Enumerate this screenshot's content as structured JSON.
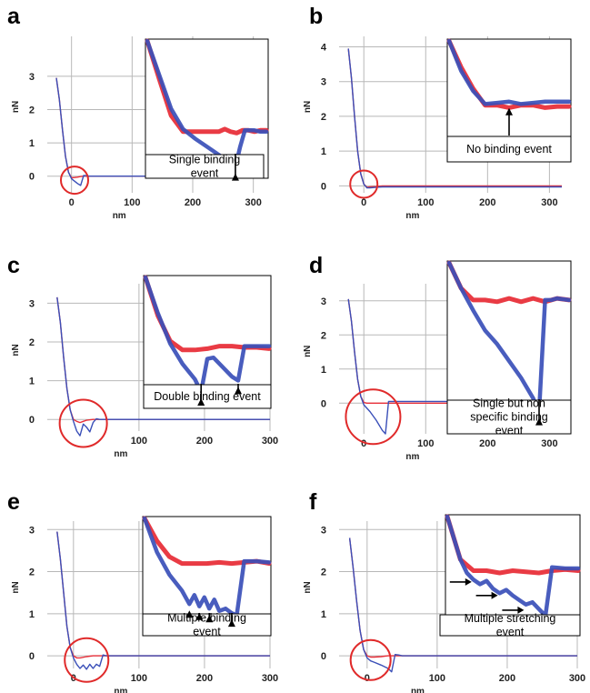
{
  "colors": {
    "approach": "#e8303a",
    "retract": "#3a4fb8",
    "circle": "#e02a2a",
    "grid": "#b8b8b8",
    "arrow": "#000000"
  },
  "chart_data": [
    {
      "type": "line",
      "panel": "a",
      "xlabel": "nm",
      "ylabel": "nN",
      "xlim": [
        -40,
        320
      ],
      "ylim": [
        -0.5,
        4.2
      ],
      "xticks": [
        0,
        100,
        200,
        300
      ],
      "yticks": [
        0,
        1,
        2,
        3
      ],
      "grid": true,
      "series": [
        {
          "x": [
            -25,
            -20,
            -15,
            -10,
            -5,
            0,
            5,
            10,
            15,
            20,
            30,
            50,
            100,
            150,
            200,
            250,
            300,
            320
          ],
          "y": [
            2.95,
            2.3,
            1.4,
            0.6,
            0.12,
            -0.05,
            -0.04,
            -0.03,
            -0.01,
            0,
            0,
            0,
            0,
            0,
            0,
            0,
            0,
            0
          ]
        },
        {
          "x": [
            -25,
            -20,
            -15,
            -10,
            -5,
            0,
            5,
            10,
            15,
            20,
            30,
            50,
            100,
            150,
            200,
            250,
            300,
            320
          ],
          "y": [
            2.95,
            2.3,
            1.4,
            0.6,
            0.12,
            -0.08,
            -0.15,
            -0.22,
            -0.28,
            0.02,
            0,
            0,
            0,
            0,
            0,
            0,
            0,
            0
          ]
        }
      ],
      "circle": {
        "x": 5,
        "y": -0.12
      },
      "inset": {
        "label": "Single binding event",
        "series": [
          {
            "x": [
              0,
              0.1,
              0.2,
              0.3,
              0.4,
              0.5,
              0.55,
              0.6,
              0.65,
              0.7,
              0.75,
              0.8,
              0.85,
              0.9,
              0.95,
              1.0
            ],
            "y": [
              1.0,
              0.72,
              0.45,
              0.33,
              0.33,
              0.33,
              0.33,
              0.33,
              0.35,
              0.33,
              0.32,
              0.34,
              0.34,
              0.33,
              0.34,
              0.34
            ]
          },
          {
            "x": [
              0,
              0.1,
              0.2,
              0.3,
              0.4,
              0.5,
              0.6,
              0.7,
              0.74,
              0.78,
              0.82,
              0.86,
              0.9,
              0.95,
              1.0
            ],
            "y": [
              1.0,
              0.75,
              0.5,
              0.35,
              0.28,
              0.22,
              0.16,
              0.1,
              0.07,
              0.22,
              0.34,
              0.34,
              0.34,
              0.33,
              0.33
            ]
          }
        ],
        "arrows": [
          0.74
        ]
      }
    },
    {
      "type": "line",
      "panel": "b",
      "xlabel": "nm",
      "ylabel": "nN",
      "xlim": [
        -40,
        320
      ],
      "ylim": [
        -0.2,
        4.3
      ],
      "xticks": [
        0,
        100,
        200,
        300
      ],
      "yticks": [
        0,
        1,
        2,
        3,
        4
      ],
      "grid": true,
      "series": [
        {
          "x": [
            -25,
            -20,
            -15,
            -10,
            -5,
            0,
            5,
            10,
            20,
            30,
            50,
            100,
            150,
            200,
            250,
            300,
            320
          ],
          "y": [
            3.95,
            3.1,
            2.0,
            1.0,
            0.35,
            0.05,
            -0.04,
            -0.03,
            -0.02,
            0,
            0,
            0,
            0,
            0,
            0,
            0,
            0
          ]
        },
        {
          "x": [
            -25,
            -20,
            -15,
            -10,
            -5,
            0,
            5,
            10,
            20,
            30,
            50,
            100,
            150,
            200,
            250,
            300,
            320
          ],
          "y": [
            3.95,
            3.1,
            2.0,
            1.0,
            0.35,
            0.05,
            -0.06,
            -0.06,
            -0.04,
            -0.03,
            -0.03,
            -0.03,
            -0.03,
            -0.03,
            -0.03,
            -0.03,
            -0.03
          ]
        }
      ],
      "circle": {
        "x": 0,
        "y": 0.05
      },
      "inset": {
        "label": "No binding event",
        "series": [
          {
            "x": [
              0,
              0.1,
              0.2,
              0.3,
              0.4,
              0.5,
              0.6,
              0.7,
              0.8,
              0.9,
              1.0
            ],
            "y": [
              1.0,
              0.78,
              0.6,
              0.46,
              0.46,
              0.44,
              0.46,
              0.46,
              0.44,
              0.45,
              0.45
            ]
          },
          {
            "x": [
              0,
              0.1,
              0.2,
              0.3,
              0.4,
              0.5,
              0.6,
              0.7,
              0.8,
              0.9,
              1.0
            ],
            "y": [
              1.0,
              0.75,
              0.58,
              0.47,
              0.48,
              0.49,
              0.47,
              0.48,
              0.49,
              0.49,
              0.49
            ]
          }
        ],
        "arrows": [
          0.5
        ]
      }
    },
    {
      "type": "line",
      "panel": "c",
      "xlabel": "nm",
      "ylabel": "nN",
      "xlim": [
        -40,
        300
      ],
      "ylim": [
        -0.3,
        3.5
      ],
      "xticks": [
        100,
        200,
        300
      ],
      "yticks": [
        0,
        1,
        2,
        3
      ],
      "grid": true,
      "series": [
        {
          "x": [
            -25,
            -20,
            -15,
            -10,
            -5,
            0,
            5,
            10,
            15,
            20,
            30,
            50,
            100,
            150,
            200,
            250,
            300
          ],
          "y": [
            3.15,
            2.5,
            1.6,
            0.8,
            0.25,
            0.0,
            -0.05,
            -0.08,
            -0.05,
            -0.02,
            0,
            0,
            0,
            0,
            0,
            0,
            0
          ]
        },
        {
          "x": [
            -25,
            -20,
            -15,
            -10,
            -5,
            0,
            5,
            10,
            15,
            20,
            25,
            30,
            35,
            40,
            50,
            100,
            150,
            200,
            250,
            300
          ],
          "y": [
            3.15,
            2.5,
            1.6,
            0.8,
            0.25,
            -0.05,
            -0.3,
            -0.42,
            -0.12,
            -0.2,
            -0.32,
            -0.08,
            0.02,
            0,
            0,
            0,
            0,
            0,
            0,
            0
          ]
        }
      ],
      "circle": {
        "x": 15,
        "y": -0.1
      },
      "inset": {
        "label": "Double binding event",
        "series": [
          {
            "x": [
              0,
              0.1,
              0.2,
              0.3,
              0.4,
              0.5,
              0.6,
              0.7,
              0.8,
              0.9,
              1.0
            ],
            "y": [
              1.0,
              0.7,
              0.5,
              0.43,
              0.43,
              0.44,
              0.46,
              0.46,
              0.45,
              0.45,
              0.44
            ]
          },
          {
            "x": [
              0,
              0.1,
              0.2,
              0.3,
              0.4,
              0.45,
              0.5,
              0.55,
              0.6,
              0.65,
              0.7,
              0.75,
              0.8,
              0.9,
              1.0
            ],
            "y": [
              1.0,
              0.72,
              0.48,
              0.32,
              0.2,
              0.1,
              0.36,
              0.37,
              0.32,
              0.27,
              0.22,
              0.19,
              0.46,
              0.46,
              0.46
            ]
          }
        ],
        "arrows": [
          0.45,
          0.75
        ]
      }
    },
    {
      "type": "line",
      "panel": "d",
      "xlabel": "nm",
      "ylabel": "nN",
      "xlim": [
        -40,
        320
      ],
      "ylim": [
        -0.9,
        3.5
      ],
      "xticks": [
        0,
        100,
        200,
        300
      ],
      "yticks": [
        0,
        1,
        2,
        3
      ],
      "grid": true,
      "series": [
        {
          "x": [
            -25,
            -20,
            -15,
            -10,
            -5,
            0,
            5,
            10,
            20,
            30,
            50,
            100,
            150,
            200,
            250,
            300,
            320
          ],
          "y": [
            3.05,
            2.4,
            1.5,
            0.7,
            0.2,
            0.02,
            0,
            0,
            0,
            0,
            0,
            0,
            0,
            0,
            0,
            0,
            0
          ]
        },
        {
          "x": [
            -25,
            -20,
            -15,
            -10,
            -5,
            0,
            10,
            20,
            30,
            35,
            40,
            45,
            50,
            100,
            150,
            200,
            250,
            300,
            320
          ],
          "y": [
            3.05,
            2.4,
            1.5,
            0.7,
            0.2,
            -0.05,
            -0.25,
            -0.5,
            -0.8,
            -0.9,
            0.05,
            0.05,
            0.05,
            0.05,
            0.05,
            0.05,
            0.05,
            0.05,
            0.05
          ]
        }
      ],
      "circle": {
        "x": 15,
        "y": -0.4
      },
      "inset": {
        "label": "Single but non specific binding event",
        "series": [
          {
            "x": [
              0,
              0.1,
              0.2,
              0.3,
              0.4,
              0.5,
              0.6,
              0.7,
              0.8,
              0.9,
              1.0
            ],
            "y": [
              1.0,
              0.85,
              0.78,
              0.78,
              0.77,
              0.79,
              0.77,
              0.79,
              0.77,
              0.79,
              0.78
            ]
          },
          {
            "x": [
              0,
              0.1,
              0.2,
              0.3,
              0.4,
              0.5,
              0.6,
              0.7,
              0.75,
              0.8,
              0.85,
              0.9,
              1.0
            ],
            "y": [
              1.0,
              0.85,
              0.72,
              0.6,
              0.52,
              0.42,
              0.32,
              0.2,
              0.12,
              0.78,
              0.78,
              0.79,
              0.78
            ]
          }
        ],
        "arrows": [
          0.75
        ]
      }
    },
    {
      "type": "line",
      "panel": "e",
      "xlabel": "nm",
      "ylabel": "nN",
      "xlim": [
        -40,
        300
      ],
      "ylim": [
        -0.3,
        3.2
      ],
      "xticks": [
        0,
        100,
        200,
        300
      ],
      "yticks": [
        0,
        1,
        2,
        3
      ],
      "grid": true,
      "series": [
        {
          "x": [
            -25,
            -20,
            -15,
            -10,
            -5,
            0,
            5,
            10,
            20,
            30,
            50,
            100,
            150,
            200,
            250,
            300
          ],
          "y": [
            2.95,
            2.3,
            1.5,
            0.7,
            0.2,
            0.0,
            -0.05,
            -0.05,
            -0.02,
            0,
            0,
            0,
            0,
            0,
            0,
            0
          ]
        },
        {
          "x": [
            -25,
            -20,
            -15,
            -10,
            -5,
            0,
            5,
            10,
            15,
            20,
            25,
            30,
            35,
            40,
            45,
            50,
            100,
            150,
            200,
            250,
            300
          ],
          "y": [
            2.95,
            2.3,
            1.5,
            0.7,
            0.2,
            -0.05,
            -0.2,
            -0.3,
            -0.22,
            -0.32,
            -0.2,
            -0.3,
            -0.2,
            -0.25,
            0.02,
            0,
            0,
            0,
            0,
            0,
            0
          ]
        }
      ],
      "circle": {
        "x": 20,
        "y": -0.1
      },
      "inset": {
        "label": "Multiple binding event",
        "series": [
          {
            "x": [
              0,
              0.1,
              0.2,
              0.3,
              0.4,
              0.5,
              0.6,
              0.7,
              0.8,
              0.9,
              1.0
            ],
            "y": [
              1.0,
              0.8,
              0.66,
              0.6,
              0.6,
              0.6,
              0.61,
              0.6,
              0.61,
              0.62,
              0.6
            ]
          },
          {
            "x": [
              0,
              0.1,
              0.2,
              0.3,
              0.36,
              0.4,
              0.44,
              0.48,
              0.52,
              0.56,
              0.6,
              0.65,
              0.7,
              0.74,
              0.8,
              0.9,
              1.0
            ],
            "y": [
              1.0,
              0.7,
              0.5,
              0.36,
              0.24,
              0.32,
              0.22,
              0.3,
              0.2,
              0.28,
              0.18,
              0.2,
              0.16,
              0.14,
              0.62,
              0.62,
              0.61
            ]
          }
        ],
        "arrows": [
          0.36,
          0.44,
          0.52,
          0.7
        ]
      }
    },
    {
      "type": "line",
      "panel": "f",
      "xlabel": "nm",
      "ylabel": "nN",
      "xlim": [
        -40,
        300
      ],
      "ylim": [
        -0.3,
        3.2
      ],
      "xticks": [
        0,
        100,
        200,
        300
      ],
      "yticks": [
        0,
        1,
        2,
        3
      ],
      "grid": true,
      "series": [
        {
          "x": [
            -25,
            -20,
            -15,
            -10,
            -5,
            0,
            5,
            10,
            20,
            30,
            50,
            100,
            150,
            200,
            250,
            300
          ],
          "y": [
            2.8,
            2.1,
            1.3,
            0.6,
            0.15,
            0.0,
            -0.03,
            -0.03,
            -0.02,
            0,
            0,
            0,
            0,
            0,
            0,
            0
          ]
        },
        {
          "x": [
            -25,
            -20,
            -15,
            -10,
            -5,
            0,
            5,
            10,
            20,
            30,
            35,
            40,
            45,
            50,
            100,
            150,
            200,
            250,
            300
          ],
          "y": [
            2.8,
            2.1,
            1.3,
            0.6,
            0.15,
            -0.05,
            -0.12,
            -0.15,
            -0.22,
            -0.3,
            -0.38,
            0.03,
            0.02,
            0,
            0,
            0,
            0,
            0,
            0
          ]
        }
      ],
      "circle": {
        "x": 5,
        "y": -0.1
      },
      "inset": {
        "label": "Multiple stretching event",
        "series": [
          {
            "x": [
              0,
              0.1,
              0.2,
              0.3,
              0.4,
              0.5,
              0.6,
              0.7,
              0.8,
              0.9,
              1.0
            ],
            "y": [
              1.0,
              0.62,
              0.52,
              0.52,
              0.5,
              0.52,
              0.51,
              0.5,
              0.52,
              0.53,
              0.52
            ]
          },
          {
            "x": [
              0,
              0.1,
              0.15,
              0.2,
              0.25,
              0.3,
              0.35,
              0.4,
              0.45,
              0.5,
              0.55,
              0.6,
              0.65,
              0.7,
              0.75,
              0.8,
              0.9,
              1.0
            ],
            "y": [
              1.0,
              0.62,
              0.5,
              0.44,
              0.4,
              0.43,
              0.36,
              0.32,
              0.35,
              0.3,
              0.26,
              0.22,
              0.24,
              0.18,
              0.12,
              0.55,
              0.54,
              0.54
            ]
          }
        ],
        "horiz_arrows": [
          0.42,
          0.3,
          0.17
        ]
      }
    }
  ]
}
